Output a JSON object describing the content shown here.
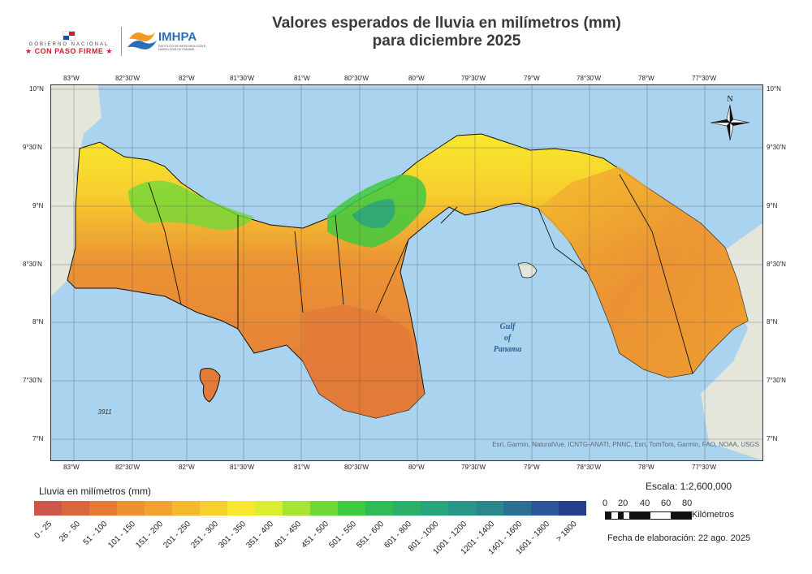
{
  "header": {
    "gov_logo": {
      "line1": "GOBIERNO NACIONAL",
      "line2": "CON PASO FIRME",
      "flag_colors": [
        "#d21f2b",
        "#1c4f9c"
      ]
    },
    "imhpa_logo": {
      "name": "IMHPA",
      "subtitle": "INSTITUTO DE METEOROLOGÍA E HIDROLOGÍA DE PANAMÁ",
      "colors": [
        "#2a6fb5",
        "#f39a1e"
      ]
    },
    "title_line1": "Valores esperados de lluvia en milímetros (mm)",
    "title_line2": "para diciembre 2025"
  },
  "map": {
    "lon_labels": [
      "83°W",
      "82°30'W",
      "82°W",
      "81°30'W",
      "81°W",
      "80°30'W",
      "80°W",
      "79°30'W",
      "79°W",
      "78°30'W",
      "78°W",
      "77°30'W"
    ],
    "lat_labels": [
      "10°N",
      "9°30'N",
      "9°N",
      "8°30'N",
      "8°N",
      "7°30'N",
      "7°N"
    ],
    "sea_label_lines": [
      "Gulf",
      "of",
      "Panama"
    ],
    "elevation_label": "3911",
    "north_label": "N",
    "attribution": "Esri, Garmin, NaturalVue, ICNTG-ANATI, PNNC, Esri, TomTom, Garmin, FAO, NOAA, USGS",
    "colors": {
      "sea": "#a9d3ee",
      "land_neighbor": "#e4e6dc",
      "province_border": "#1a1a1a"
    }
  },
  "legend": {
    "title": "Lluvia en milímetros (mm)",
    "classes": [
      {
        "label": "0 - 25",
        "color": "#c9584a"
      },
      {
        "label": "26 - 50",
        "color": "#d9663f"
      },
      {
        "label": "51 - 100",
        "color": "#e37a38"
      },
      {
        "label": "101 - 150",
        "color": "#eb9334"
      },
      {
        "label": "151 - 200",
        "color": "#f0a42f"
      },
      {
        "label": "201 - 250",
        "color": "#f3ba2c"
      },
      {
        "label": "251 - 300",
        "color": "#f7d02d"
      },
      {
        "label": "301 - 350",
        "color": "#f8e82c"
      },
      {
        "label": "351 - 400",
        "color": "#d8ee2e"
      },
      {
        "label": "401 - 450",
        "color": "#a8e432"
      },
      {
        "label": "451 - 500",
        "color": "#6fd838"
      },
      {
        "label": "501 - 550",
        "color": "#3fc940"
      },
      {
        "label": "551 - 600",
        "color": "#2fbc55"
      },
      {
        "label": "601 - 800",
        "color": "#2bb06b"
      },
      {
        "label": "801 - 1000",
        "color": "#2aa47c"
      },
      {
        "label": "1001 - 1200",
        "color": "#2a9787"
      },
      {
        "label": "1201 - 1400",
        "color": "#2b878c"
      },
      {
        "label": "1401 - 1600",
        "color": "#2c6f92"
      },
      {
        "label": "1601 - 1800",
        "color": "#2a5797"
      },
      {
        "label": "> 1800",
        "color": "#243f8c"
      }
    ]
  },
  "scale": {
    "text": "Escala: 1:2,600,000",
    "ticks": [
      "0",
      "20",
      "40",
      "60",
      "80"
    ],
    "unit": "Kilómetros"
  },
  "footer": {
    "fecha": "Fecha de elaboración: 22 ago. 2025"
  }
}
